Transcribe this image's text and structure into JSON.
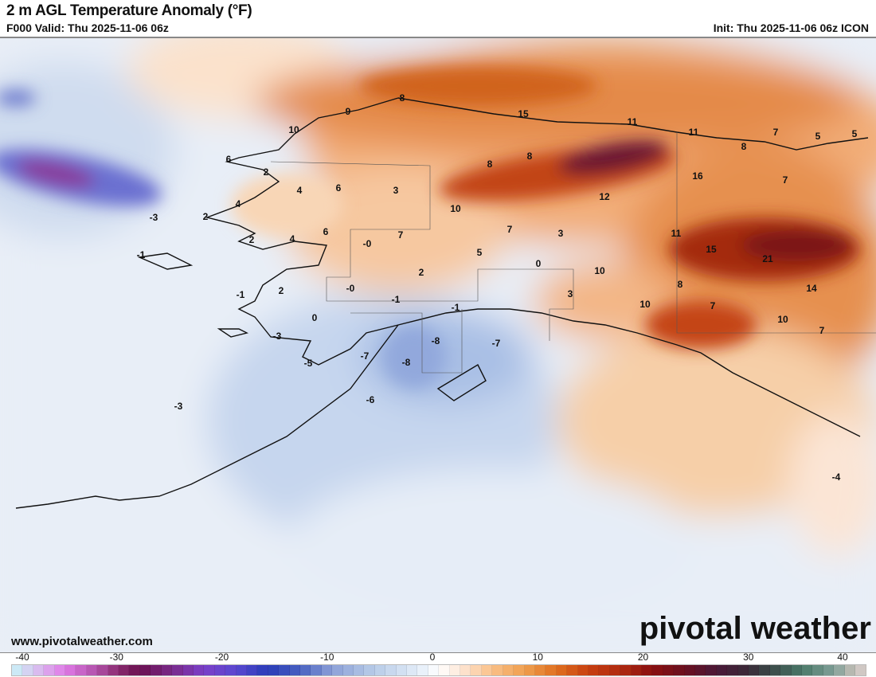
{
  "header": {
    "title": "2 m AGL Temperature Anomaly (°F)",
    "valid": "F000 Valid: Thu 2025-11-06 06z",
    "init": "Init: Thu 2025-11-06 06z ICON"
  },
  "footer": {
    "website": "www.pivotalweather.com",
    "logo": "pivotal weather"
  },
  "colorbar": {
    "units": "°F",
    "min": -40,
    "max": 40,
    "ticks": [
      "-40",
      "-30",
      "-20",
      "-10",
      "0",
      "10",
      "20",
      "30",
      "40"
    ],
    "stops": [
      [
        -40,
        "#c8f4f8"
      ],
      [
        -38,
        "#d8c8f0"
      ],
      [
        -35,
        "#e07ae8"
      ],
      [
        -32,
        "#b050a8"
      ],
      [
        -30,
        "#8a2c70"
      ],
      [
        -28,
        "#6a1050"
      ],
      [
        -25,
        "#7a2a8a"
      ],
      [
        -22,
        "#7a40c8"
      ],
      [
        -19,
        "#5a48d0"
      ],
      [
        -16,
        "#2a3cb8"
      ],
      [
        -13,
        "#4860c0"
      ],
      [
        -10,
        "#8ca0d8"
      ],
      [
        -6,
        "#b8cce8"
      ],
      [
        -2,
        "#e2ecf8"
      ],
      [
        0,
        "#ffffff"
      ],
      [
        2,
        "#fde8d8"
      ],
      [
        5,
        "#fac088"
      ],
      [
        8,
        "#f0a050"
      ],
      [
        11,
        "#e07020"
      ],
      [
        14,
        "#c84010"
      ],
      [
        17,
        "#b02a10"
      ],
      [
        20,
        "#8a1010"
      ],
      [
        23,
        "#6a1020"
      ],
      [
        26,
        "#4a1838"
      ],
      [
        29,
        "#3a2a38"
      ],
      [
        31,
        "#3a4848"
      ],
      [
        34,
        "#4a7868"
      ],
      [
        37,
        "#80a098"
      ],
      [
        39,
        "#c8c0b8"
      ],
      [
        40,
        "#d8d0d0"
      ]
    ]
  },
  "map": {
    "anomaly_labels": [
      "8",
      "9",
      "15",
      "11",
      "11",
      "7",
      "5",
      "5",
      "10",
      "8",
      "8",
      "8",
      "6",
      "2",
      "16",
      "7",
      "4",
      "6",
      "3",
      "12",
      "-3",
      "4",
      "2",
      "10",
      "7",
      "3",
      "11",
      "6",
      "2",
      "4",
      "-0",
      "7",
      "5",
      "0",
      "15",
      "21",
      "-1",
      "10",
      "2",
      "2",
      "-1",
      "-0",
      "-1",
      "-1",
      "3",
      "8",
      "14",
      "10",
      "7",
      "0",
      "10",
      "7",
      "-3",
      "-7",
      "-8",
      "-7",
      "-5",
      "-8",
      "-6",
      "-3",
      "-4"
    ]
  }
}
